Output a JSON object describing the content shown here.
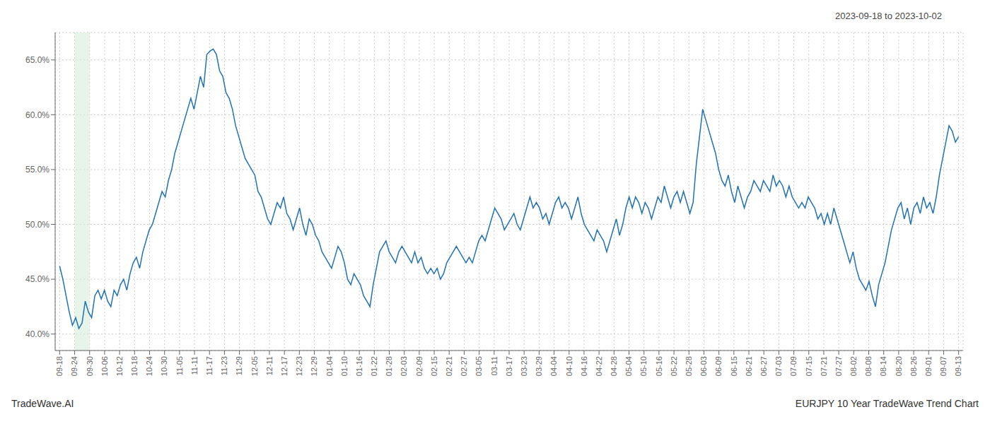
{
  "chart_data": {
    "type": "line",
    "subtitle": "2023-09-18 to 2023-10-02",
    "annotations": [
      "TradeWave.AI",
      "EURJPY 10 Year TradeWave Trend Chart"
    ],
    "color": "#2271b3",
    "grid": true,
    "shade": {
      "start": 1,
      "end": 2,
      "color": "#d6edda"
    },
    "xlim": [
      -0.3,
      60.3
    ],
    "xticks": [
      {
        "value": 0,
        "label": "09-18"
      },
      {
        "value": 1,
        "label": "09-24"
      },
      {
        "value": 2,
        "label": "09-30"
      },
      {
        "value": 3,
        "label": "10-06"
      },
      {
        "value": 4,
        "label": "10-12"
      },
      {
        "value": 5,
        "label": "10-18"
      },
      {
        "value": 6,
        "label": "10-24"
      },
      {
        "value": 7,
        "label": "10-30"
      },
      {
        "value": 8,
        "label": "11-05"
      },
      {
        "value": 9,
        "label": "11-11"
      },
      {
        "value": 10,
        "label": "11-17"
      },
      {
        "value": 11,
        "label": "11-23"
      },
      {
        "value": 12,
        "label": "11-29"
      },
      {
        "value": 13,
        "label": "12-05"
      },
      {
        "value": 14,
        "label": "12-11"
      },
      {
        "value": 15,
        "label": "12-17"
      },
      {
        "value": 16,
        "label": "12-23"
      },
      {
        "value": 17,
        "label": "12-29"
      },
      {
        "value": 18,
        "label": "01-04"
      },
      {
        "value": 19,
        "label": "01-10"
      },
      {
        "value": 20,
        "label": "01-16"
      },
      {
        "value": 21,
        "label": "01-22"
      },
      {
        "value": 22,
        "label": "01-28"
      },
      {
        "value": 23,
        "label": "02-03"
      },
      {
        "value": 24,
        "label": "02-09"
      },
      {
        "value": 25,
        "label": "02-15"
      },
      {
        "value": 26,
        "label": "02-21"
      },
      {
        "value": 27,
        "label": "02-27"
      },
      {
        "value": 28,
        "label": "03-05"
      },
      {
        "value": 29,
        "label": "03-11"
      },
      {
        "value": 30,
        "label": "03-17"
      },
      {
        "value": 31,
        "label": "03-23"
      },
      {
        "value": 32,
        "label": "03-29"
      },
      {
        "value": 33,
        "label": "04-04"
      },
      {
        "value": 34,
        "label": "04-10"
      },
      {
        "value": 35,
        "label": "04-16"
      },
      {
        "value": 36,
        "label": "04-22"
      },
      {
        "value": 37,
        "label": "04-28"
      },
      {
        "value": 38,
        "label": "05-04"
      },
      {
        "value": 39,
        "label": "05-10"
      },
      {
        "value": 40,
        "label": "05-16"
      },
      {
        "value": 41,
        "label": "05-22"
      },
      {
        "value": 42,
        "label": "05-28"
      },
      {
        "value": 43,
        "label": "06-03"
      },
      {
        "value": 44,
        "label": "06-09"
      },
      {
        "value": 45,
        "label": "06-15"
      },
      {
        "value": 46,
        "label": "06-21"
      },
      {
        "value": 47,
        "label": "06-27"
      },
      {
        "value": 48,
        "label": "07-03"
      },
      {
        "value": 49,
        "label": "07-09"
      },
      {
        "value": 50,
        "label": "07-15"
      },
      {
        "value": 51,
        "label": "07-21"
      },
      {
        "value": 52,
        "label": "07-27"
      },
      {
        "value": 53,
        "label": "08-02"
      },
      {
        "value": 54,
        "label": "08-08"
      },
      {
        "value": 55,
        "label": "08-14"
      },
      {
        "value": 56,
        "label": "08-20"
      },
      {
        "value": 57,
        "label": "08-26"
      },
      {
        "value": 58,
        "label": "09-01"
      },
      {
        "value": 59,
        "label": "09-07"
      },
      {
        "value": 60,
        "label": "09-13"
      }
    ],
    "ylim": [
      38.5,
      67.5
    ],
    "yticks": [
      {
        "value": 40.0,
        "label": "40.0%"
      },
      {
        "value": 45.0,
        "label": "45.0%"
      },
      {
        "value": 50.0,
        "label": "50.0%"
      },
      {
        "value": 55.0,
        "label": "55.0%"
      },
      {
        "value": 60.0,
        "label": "60.0%"
      },
      {
        "value": 65.0,
        "label": "65.0%"
      }
    ],
    "values": [
      46.2,
      45.0,
      43.5,
      42.0,
      40.8,
      41.5,
      40.5,
      41.0,
      43.0,
      42.0,
      41.5,
      43.5,
      44.0,
      43.2,
      44.0,
      43.0,
      42.5,
      44.0,
      43.5,
      44.5,
      45.0,
      44.0,
      45.5,
      46.5,
      47.0,
      46.0,
      47.5,
      48.5,
      49.5,
      50.0,
      51.0,
      52.0,
      53.0,
      52.5,
      54.0,
      55.0,
      56.5,
      57.5,
      58.5,
      59.5,
      60.5,
      61.5,
      60.5,
      62.0,
      63.5,
      62.5,
      65.5,
      65.8,
      66.0,
      65.5,
      64.0,
      63.5,
      62.0,
      61.5,
      60.5,
      59.0,
      58.0,
      57.0,
      56.0,
      55.5,
      55.0,
      54.5,
      53.0,
      52.5,
      51.5,
      50.5,
      50.0,
      51.0,
      52.0,
      51.5,
      52.5,
      51.0,
      50.5,
      49.5,
      50.5,
      51.5,
      50.0,
      49.0,
      50.5,
      50.0,
      49.0,
      48.5,
      47.5,
      47.0,
      46.5,
      46.0,
      47.0,
      48.0,
      47.5,
      46.5,
      45.0,
      44.5,
      45.5,
      45.0,
      44.5,
      43.5,
      43.0,
      42.5,
      44.5,
      46.0,
      47.5,
      48.0,
      48.5,
      47.5,
      47.0,
      46.5,
      47.5,
      48.0,
      47.5,
      47.0,
      46.5,
      47.5,
      46.5,
      47.0,
      46.0,
      45.5,
      46.0,
      45.5,
      46.0,
      45.0,
      45.5,
      46.5,
      47.0,
      47.5,
      48.0,
      47.5,
      47.0,
      46.5,
      47.0,
      46.5,
      47.5,
      48.5,
      49.0,
      48.5,
      49.5,
      50.5,
      51.5,
      51.0,
      50.5,
      49.5,
      50.0,
      50.5,
      51.0,
      50.0,
      49.5,
      50.5,
      51.5,
      52.5,
      51.5,
      52.0,
      51.5,
      50.5,
      51.0,
      50.0,
      51.0,
      52.0,
      52.5,
      51.5,
      52.0,
      51.5,
      50.5,
      51.5,
      52.5,
      51.0,
      50.0,
      49.5,
      49.0,
      48.5,
      49.5,
      49.0,
      48.5,
      47.5,
      48.5,
      49.5,
      50.5,
      49.0,
      50.0,
      51.5,
      52.5,
      51.5,
      52.5,
      52.0,
      51.0,
      52.0,
      51.5,
      50.5,
      51.5,
      52.5,
      52.0,
      53.5,
      52.5,
      51.5,
      52.5,
      53.0,
      52.0,
      53.0,
      52.0,
      51.0,
      52.0,
      55.5,
      58.0,
      60.5,
      59.5,
      58.5,
      57.5,
      56.5,
      55.0,
      54.0,
      53.5,
      54.5,
      53.0,
      52.0,
      53.5,
      52.5,
      51.5,
      52.5,
      53.0,
      54.0,
      53.5,
      53.0,
      54.0,
      53.5,
      53.0,
      54.5,
      53.5,
      54.0,
      53.5,
      52.5,
      53.5,
      52.5,
      52.0,
      51.5,
      52.0,
      51.5,
      52.5,
      52.0,
      51.5,
      50.5,
      51.0,
      50.0,
      51.0,
      50.0,
      51.5,
      50.5,
      49.5,
      48.5,
      47.5,
      46.5,
      47.5,
      46.0,
      45.0,
      44.5,
      44.0,
      44.8,
      43.5,
      42.5,
      44.5,
      45.5,
      46.5,
      48.0,
      49.5,
      50.5,
      51.5,
      52.0,
      50.5,
      51.5,
      50.0,
      51.5,
      52.0,
      51.0,
      52.5,
      51.5,
      52.0,
      51.0,
      52.5,
      54.5,
      56.0,
      57.5,
      59.0,
      58.5,
      57.5,
      58.0
    ]
  }
}
